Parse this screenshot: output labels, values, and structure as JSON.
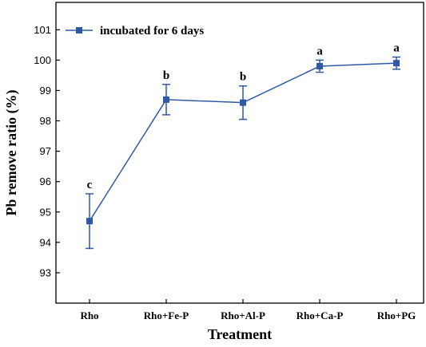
{
  "chart_data": {
    "type": "line",
    "title": "",
    "xlabel": "Treatment",
    "ylabel": "Pb remove ratio (%)",
    "categories": [
      "Rho",
      "Rho+Fe-P",
      "Rho+Al-P",
      "Rho+Ca-P",
      "Rho+PG"
    ],
    "ylim": [
      92,
      101.9
    ],
    "yticks": [
      93,
      94,
      95,
      96,
      97,
      98,
      99,
      100,
      101
    ],
    "grid": false,
    "legend_position": "top-left",
    "series": [
      {
        "name": "incubated for 6 days",
        "color": "#2e59a7",
        "marker": "square",
        "values": [
          94.7,
          98.7,
          98.6,
          99.8,
          99.9
        ],
        "error": [
          0.9,
          0.5,
          0.55,
          0.2,
          0.2
        ],
        "significance": [
          "c",
          "b",
          "b",
          "a",
          "a"
        ]
      }
    ]
  }
}
